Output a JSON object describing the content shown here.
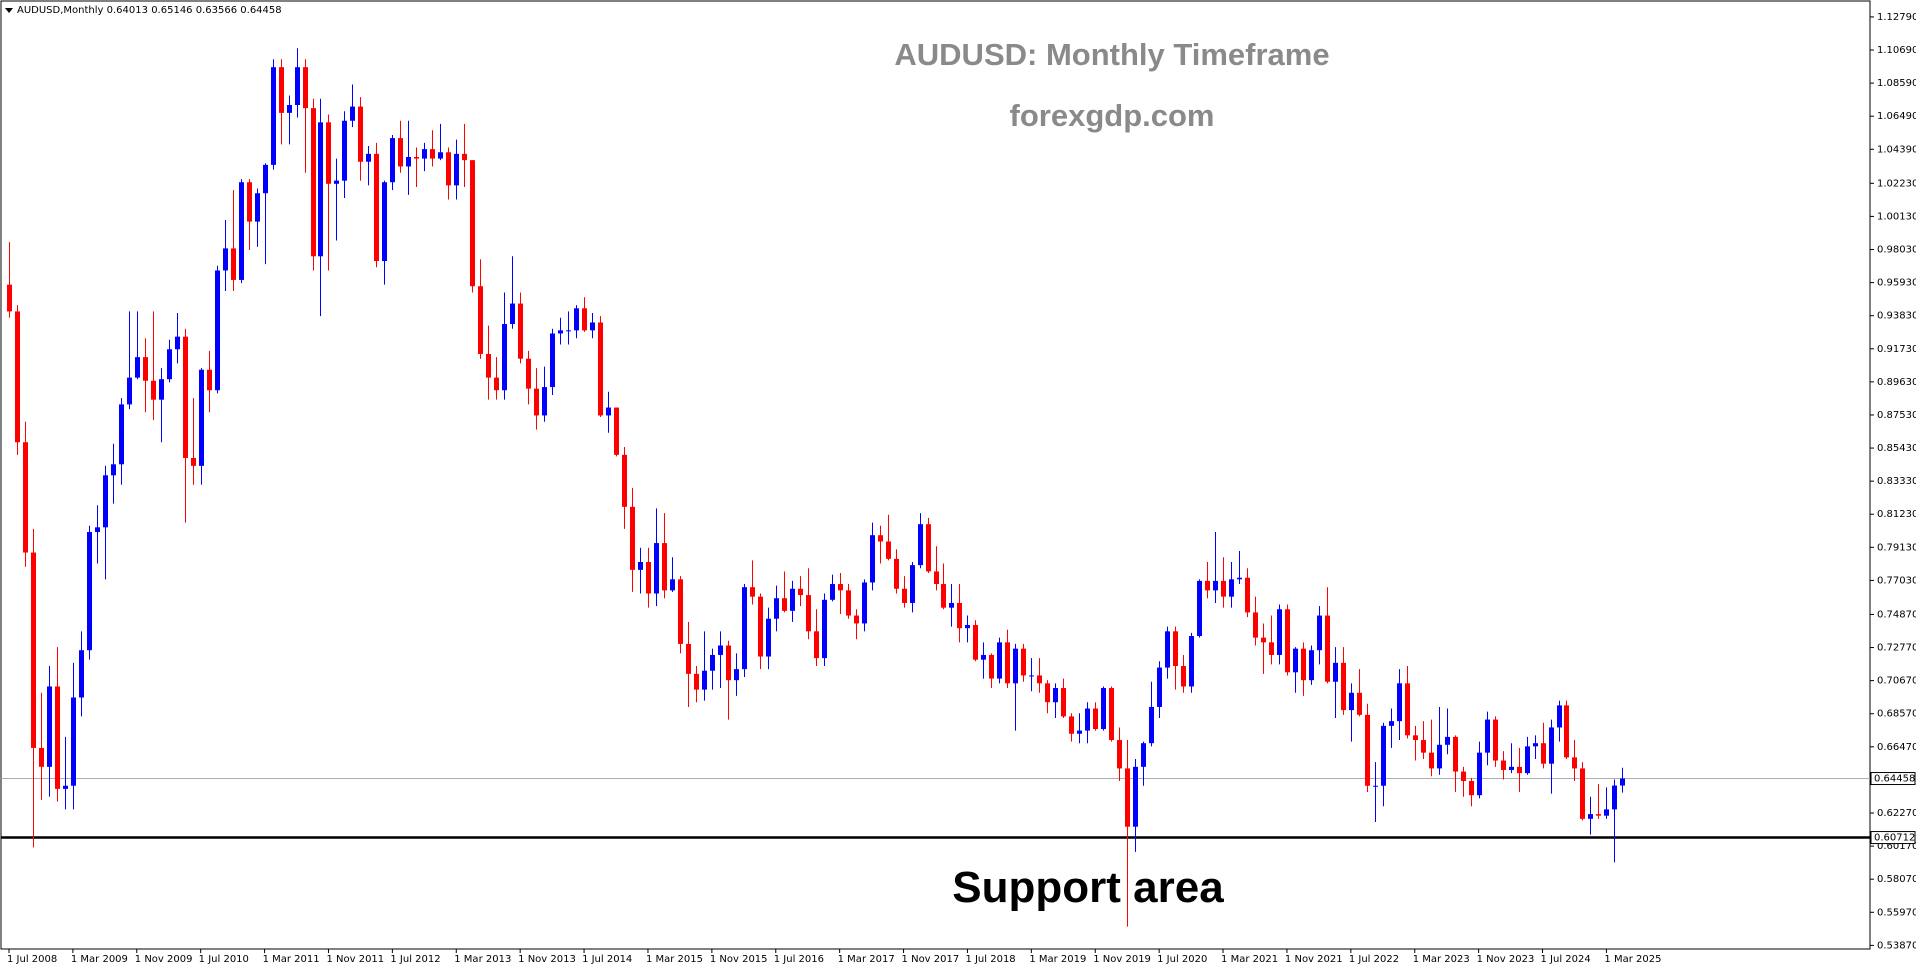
{
  "chart_data": {
    "type": "candlestick",
    "title": "AUDUSD: Monthly Timeframe",
    "subtitle": "forexgdp.com",
    "symbol": "AUDUSD,Monthly",
    "annotation": "Support area",
    "up_color": "#0000ff",
    "down_color": "#ff0000",
    "price_line_color": "#a9adb5",
    "support": {
      "value": 0.60712,
      "color": "#000000"
    },
    "x": [
      "2008-07-01",
      "2008-08-01",
      "2008-09-01",
      "2008-10-01",
      "2008-11-01",
      "2008-12-01",
      "2009-01-01",
      "2009-02-01",
      "2009-03-01",
      "2009-04-01",
      "2009-05-01",
      "2009-06-01",
      "2009-07-01",
      "2009-08-01",
      "2009-09-01",
      "2009-10-01",
      "2009-11-01",
      "2009-12-01",
      "2010-01-01",
      "2010-02-01",
      "2010-03-01",
      "2010-04-01",
      "2010-05-01",
      "2010-06-01",
      "2010-07-01",
      "2010-08-01",
      "2010-09-01",
      "2010-10-01",
      "2010-11-01",
      "2010-12-01",
      "2011-01-01",
      "2011-02-01",
      "2011-03-01",
      "2011-04-01",
      "2011-05-01",
      "2011-06-01",
      "2011-07-01",
      "2011-08-01",
      "2011-09-01",
      "2011-10-01",
      "2011-11-01",
      "2011-12-01",
      "2012-01-01",
      "2012-02-01",
      "2012-03-01",
      "2012-04-01",
      "2012-05-01",
      "2012-06-01",
      "2012-07-01",
      "2012-08-01",
      "2012-09-01",
      "2012-10-01",
      "2012-11-01",
      "2012-12-01",
      "2013-01-01",
      "2013-02-01",
      "2013-03-01",
      "2013-04-01",
      "2013-05-01",
      "2013-06-01",
      "2013-07-01",
      "2013-08-01",
      "2013-09-01",
      "2013-10-01",
      "2013-11-01",
      "2013-12-01",
      "2014-01-01",
      "2014-02-01",
      "2014-03-01",
      "2014-04-01",
      "2014-05-01",
      "2014-06-01",
      "2014-07-01",
      "2014-08-01",
      "2014-09-01",
      "2014-10-01",
      "2014-11-01",
      "2014-12-01",
      "2015-01-01",
      "2015-02-01",
      "2015-03-01",
      "2015-04-01",
      "2015-05-01",
      "2015-06-01",
      "2015-07-01",
      "2015-08-01",
      "2015-09-01",
      "2015-10-01",
      "2015-11-01",
      "2015-12-01",
      "2016-01-01",
      "2016-02-01",
      "2016-03-01",
      "2016-04-01",
      "2016-05-01",
      "2016-06-01",
      "2016-07-01",
      "2016-08-01",
      "2016-09-01",
      "2016-10-01",
      "2016-11-01",
      "2016-12-01",
      "2017-01-01",
      "2017-02-01",
      "2017-03-01",
      "2017-04-01",
      "2017-05-01",
      "2017-06-01",
      "2017-07-01",
      "2017-08-01",
      "2017-09-01",
      "2017-10-01",
      "2017-11-01",
      "2017-12-01",
      "2018-01-01",
      "2018-02-01",
      "2018-03-01",
      "2018-04-01",
      "2018-05-01",
      "2018-06-01",
      "2018-07-01",
      "2018-08-01",
      "2018-09-01",
      "2018-10-01",
      "2018-11-01",
      "2018-12-01",
      "2019-01-01",
      "2019-02-01",
      "2019-03-01",
      "2019-04-01",
      "2019-05-01",
      "2019-06-01",
      "2019-07-01",
      "2019-08-01",
      "2019-09-01",
      "2019-10-01",
      "2019-11-01",
      "2019-12-01",
      "2020-01-01",
      "2020-02-01",
      "2020-03-01",
      "2020-04-01",
      "2020-05-01",
      "2020-06-01",
      "2020-07-01",
      "2020-08-01",
      "2020-09-01",
      "2020-10-01",
      "2020-11-01",
      "2020-12-01",
      "2021-01-01",
      "2021-02-01",
      "2021-03-01",
      "2021-04-01",
      "2021-05-01",
      "2021-06-01",
      "2021-07-01",
      "2021-08-01",
      "2021-09-01",
      "2021-10-01",
      "2021-11-01",
      "2021-12-01",
      "2022-01-01",
      "2022-02-01",
      "2022-03-01",
      "2022-04-01",
      "2022-05-01",
      "2022-06-01",
      "2022-07-01",
      "2022-08-01",
      "2022-09-01",
      "2022-10-01",
      "2022-11-01",
      "2022-12-01",
      "2023-01-01",
      "2023-02-01",
      "2023-03-01",
      "2023-04-01",
      "2023-05-01",
      "2023-06-01",
      "2023-07-01",
      "2023-08-01",
      "2023-09-01",
      "2023-10-01",
      "2023-11-01",
      "2023-12-01",
      "2024-01-01",
      "2024-02-01",
      "2024-03-01",
      "2024-04-01",
      "2024-05-01",
      "2024-06-01",
      "2024-07-01",
      "2024-08-01",
      "2024-09-01",
      "2024-10-01",
      "2024-11-01",
      "2024-12-01",
      "2025-01-01",
      "2025-02-01",
      "2025-03-01",
      "2025-04-01",
      "2025-05-01"
    ],
    "open": [
      0.958,
      0.941,
      0.858,
      0.788,
      0.664,
      0.652,
      0.703,
      0.638,
      0.64,
      0.696,
      0.726,
      0.801,
      0.804,
      0.837,
      0.844,
      0.882,
      0.899,
      0.912,
      0.897,
      0.885,
      0.898,
      0.917,
      0.925,
      0.848,
      0.843,
      0.904,
      0.891,
      0.967,
      0.981,
      0.961,
      1.023,
      0.998,
      1.016,
      1.034,
      1.096,
      1.067,
      1.072,
      1.096,
      1.07,
      0.976,
      1.061,
      1.022,
      1.024,
      1.062,
      1.071,
      1.036,
      1.041,
      0.973,
      1.023,
      1.051,
      1.033,
      1.039,
      1.038,
      1.044,
      1.038,
      1.042,
      1.021,
      1.041,
      1.037,
      0.957,
      0.914,
      0.899,
      0.891,
      0.933,
      0.946,
      0.911,
      0.892,
      0.875,
      0.893,
      0.927,
      0.929,
      0.929,
      0.943,
      0.929,
      0.934,
      0.875,
      0.88,
      0.85,
      0.817,
      0.777,
      0.782,
      0.762,
      0.794,
      0.764,
      0.771,
      0.73,
      0.711,
      0.701,
      0.713,
      0.723,
      0.729,
      0.707,
      0.714,
      0.766,
      0.76,
      0.722,
      0.746,
      0.759,
      0.751,
      0.765,
      0.761,
      0.738,
      0.721,
      0.758,
      0.768,
      0.764,
      0.748,
      0.743,
      0.769,
      0.799,
      0.795,
      0.784,
      0.765,
      0.756,
      0.78,
      0.806,
      0.776,
      0.768,
      0.753,
      0.756,
      0.74,
      0.742,
      0.72,
      0.723,
      0.708,
      0.731,
      0.705,
      0.727,
      0.71,
      0.71,
      0.705,
      0.693,
      0.702,
      0.684,
      0.673,
      0.675,
      0.689,
      0.676,
      0.702,
      0.669,
      0.651,
      0.614,
      0.652,
      0.667,
      0.69,
      0.715,
      0.738,
      0.716,
      0.703,
      0.735,
      0.77,
      0.764,
      0.77,
      0.76,
      0.771,
      0.772,
      0.75,
      0.734,
      0.731,
      0.723,
      0.752,
      0.712,
      0.727,
      0.707,
      0.726,
      0.748,
      0.706,
      0.718,
      0.688,
      0.699,
      0.685,
      0.64,
      0.64,
      0.678,
      0.681,
      0.705,
      0.672,
      0.669,
      0.661,
      0.651,
      0.666,
      0.671,
      0.649,
      0.643,
      0.634,
      0.661,
      0.682,
      0.656,
      0.65,
      0.652,
      0.648,
      0.665,
      0.667,
      0.654,
      0.677,
      0.691,
      0.658,
      0.651,
      0.619,
      0.622,
      0.621,
      0.625,
      0.64013
    ],
    "high": [
      0.985,
      0.945,
      0.871,
      0.803,
      0.699,
      0.716,
      0.728,
      0.671,
      0.718,
      0.738,
      0.805,
      0.818,
      0.843,
      0.857,
      0.886,
      0.941,
      0.941,
      0.924,
      0.941,
      0.905,
      0.923,
      0.94,
      0.93,
      0.886,
      0.905,
      0.916,
      0.97,
      0.999,
      1.018,
      1.025,
      1.025,
      1.019,
      1.035,
      1.101,
      1.101,
      1.078,
      1.108,
      1.101,
      1.076,
      1.076,
      1.066,
      1.038,
      1.068,
      1.085,
      1.077,
      1.046,
      1.048,
      1.024,
      1.053,
      1.062,
      1.062,
      1.045,
      1.048,
      1.056,
      1.06,
      1.045,
      1.05,
      1.06,
      1.037,
      0.974,
      0.932,
      0.912,
      0.953,
      0.976,
      0.953,
      0.916,
      0.905,
      0.906,
      0.93,
      0.937,
      0.941,
      0.945,
      0.95,
      0.94,
      0.938,
      0.89,
      0.88,
      0.855,
      0.829,
      0.791,
      0.791,
      0.816,
      0.813,
      0.785,
      0.773,
      0.744,
      0.716,
      0.738,
      0.727,
      0.738,
      0.732,
      0.724,
      0.768,
      0.783,
      0.762,
      0.753,
      0.767,
      0.776,
      0.77,
      0.773,
      0.778,
      0.752,
      0.762,
      0.774,
      0.775,
      0.768,
      0.752,
      0.771,
      0.807,
      0.805,
      0.812,
      0.79,
      0.773,
      0.782,
      0.813,
      0.81,
      0.792,
      0.781,
      0.768,
      0.768,
      0.748,
      0.745,
      0.731,
      0.724,
      0.734,
      0.739,
      0.73,
      0.73,
      0.721,
      0.721,
      0.707,
      0.705,
      0.708,
      0.686,
      0.686,
      0.693,
      0.693,
      0.703,
      0.703,
      0.677,
      0.669,
      0.657,
      0.668,
      0.706,
      0.719,
      0.741,
      0.741,
      0.723,
      0.737,
      0.771,
      0.782,
      0.801,
      0.785,
      0.782,
      0.789,
      0.778,
      0.76,
      0.743,
      0.748,
      0.755,
      0.755,
      0.728,
      0.731,
      0.729,
      0.754,
      0.766,
      0.728,
      0.728,
      0.705,
      0.714,
      0.692,
      0.655,
      0.68,
      0.689,
      0.714,
      0.716,
      0.678,
      0.681,
      0.682,
      0.69,
      0.689,
      0.672,
      0.652,
      0.645,
      0.668,
      0.687,
      0.684,
      0.662,
      0.667,
      0.664,
      0.671,
      0.672,
      0.68,
      0.682,
      0.694,
      0.694,
      0.669,
      0.655,
      0.633,
      0.641,
      0.639,
      0.644,
      0.65146
    ],
    "low": [
      0.937,
      0.85,
      0.779,
      0.6009,
      0.631,
      0.633,
      0.63,
      0.625,
      0.625,
      0.684,
      0.72,
      0.781,
      0.771,
      0.819,
      0.831,
      0.879,
      0.898,
      0.877,
      0.872,
      0.858,
      0.896,
      0.908,
      0.807,
      0.831,
      0.831,
      0.877,
      0.889,
      0.954,
      0.954,
      0.959,
      0.98,
      0.982,
      0.971,
      1.031,
      1.047,
      1.047,
      1.064,
      1.029,
      0.967,
      0.938,
      0.967,
      0.986,
      1.013,
      1.058,
      1.024,
      1.021,
      0.969,
      0.958,
      1.018,
      1.029,
      1.015,
      1.02,
      1.03,
      1.033,
      1.037,
      1.012,
      1.012,
      1.02,
      0.953,
      0.911,
      0.885,
      0.885,
      0.885,
      0.93,
      0.908,
      0.882,
      0.866,
      0.871,
      0.888,
      0.92,
      0.92,
      0.924,
      0.928,
      0.924,
      0.874,
      0.864,
      0.849,
      0.803,
      0.763,
      0.762,
      0.753,
      0.754,
      0.759,
      0.763,
      0.724,
      0.69,
      0.693,
      0.694,
      0.701,
      0.702,
      0.682,
      0.697,
      0.709,
      0.755,
      0.714,
      0.714,
      0.738,
      0.75,
      0.744,
      0.754,
      0.733,
      0.716,
      0.716,
      0.757,
      0.749,
      0.746,
      0.733,
      0.738,
      0.764,
      0.781,
      0.783,
      0.762,
      0.753,
      0.75,
      0.778,
      0.775,
      0.764,
      0.752,
      0.741,
      0.731,
      0.731,
      0.719,
      0.708,
      0.702,
      0.705,
      0.702,
      0.675,
      0.706,
      0.7,
      0.699,
      0.686,
      0.683,
      0.683,
      0.668,
      0.667,
      0.667,
      0.675,
      0.675,
      0.668,
      0.643,
      0.5506,
      0.598,
      0.64,
      0.665,
      0.683,
      0.708,
      0.701,
      0.699,
      0.699,
      0.734,
      0.759,
      0.756,
      0.753,
      0.753,
      0.768,
      0.747,
      0.729,
      0.711,
      0.717,
      0.717,
      0.71,
      0.699,
      0.697,
      0.704,
      0.717,
      0.705,
      0.683,
      0.685,
      0.668,
      0.684,
      0.636,
      0.617,
      0.627,
      0.664,
      0.669,
      0.67,
      0.656,
      0.657,
      0.646,
      0.647,
      0.66,
      0.636,
      0.633,
      0.627,
      0.632,
      0.653,
      0.652,
      0.644,
      0.648,
      0.636,
      0.647,
      0.657,
      0.651,
      0.635,
      0.668,
      0.657,
      0.643,
      0.618,
      0.609,
      0.619,
      0.619,
      0.5914,
      0.63566
    ],
    "close": [
      0.941,
      0.858,
      0.788,
      0.664,
      0.652,
      0.703,
      0.638,
      0.64,
      0.696,
      0.726,
      0.801,
      0.804,
      0.837,
      0.844,
      0.882,
      0.899,
      0.912,
      0.897,
      0.885,
      0.898,
      0.917,
      0.925,
      0.848,
      0.843,
      0.904,
      0.891,
      0.967,
      0.981,
      0.961,
      1.023,
      0.998,
      1.016,
      1.034,
      1.096,
      1.067,
      1.072,
      1.096,
      1.07,
      0.976,
      1.061,
      1.022,
      1.024,
      1.062,
      1.071,
      1.036,
      1.041,
      0.973,
      1.023,
      1.051,
      1.033,
      1.039,
      1.038,
      1.044,
      1.038,
      1.042,
      1.021,
      1.041,
      1.037,
      0.957,
      0.914,
      0.899,
      0.891,
      0.933,
      0.946,
      0.911,
      0.892,
      0.875,
      0.893,
      0.927,
      0.929,
      0.929,
      0.943,
      0.929,
      0.934,
      0.875,
      0.88,
      0.85,
      0.817,
      0.777,
      0.782,
      0.762,
      0.794,
      0.764,
      0.771,
      0.73,
      0.711,
      0.701,
      0.713,
      0.723,
      0.729,
      0.707,
      0.714,
      0.766,
      0.76,
      0.722,
      0.746,
      0.759,
      0.751,
      0.765,
      0.761,
      0.738,
      0.721,
      0.758,
      0.768,
      0.764,
      0.748,
      0.743,
      0.769,
      0.799,
      0.795,
      0.784,
      0.765,
      0.756,
      0.78,
      0.806,
      0.776,
      0.768,
      0.753,
      0.756,
      0.74,
      0.742,
      0.72,
      0.723,
      0.708,
      0.731,
      0.705,
      0.727,
      0.71,
      0.71,
      0.705,
      0.693,
      0.702,
      0.684,
      0.673,
      0.675,
      0.689,
      0.676,
      0.702,
      0.669,
      0.651,
      0.614,
      0.652,
      0.667,
      0.69,
      0.715,
      0.738,
      0.716,
      0.703,
      0.735,
      0.77,
      0.764,
      0.77,
      0.76,
      0.771,
      0.772,
      0.75,
      0.734,
      0.731,
      0.723,
      0.752,
      0.712,
      0.727,
      0.707,
      0.726,
      0.748,
      0.706,
      0.718,
      0.688,
      0.699,
      0.685,
      0.64,
      0.64,
      0.678,
      0.681,
      0.705,
      0.672,
      0.669,
      0.661,
      0.651,
      0.666,
      0.671,
      0.649,
      0.643,
      0.634,
      0.661,
      0.682,
      0.656,
      0.65,
      0.652,
      0.648,
      0.665,
      0.667,
      0.654,
      0.677,
      0.691,
      0.658,
      0.651,
      0.619,
      0.622,
      0.621,
      0.625,
      0.64013,
      0.64458
    ],
    "xlim": [
      "2008-06-01",
      "2027-12-01"
    ],
    "xticks": [
      {
        "value": "2008-07-01",
        "label": "1 Jul 2008"
      },
      {
        "value": "2009-03-01",
        "label": "1 Mar 2009"
      },
      {
        "value": "2009-11-01",
        "label": "1 Nov 2009"
      },
      {
        "value": "2010-07-01",
        "label": "1 Jul 2010"
      },
      {
        "value": "2011-03-01",
        "label": "1 Mar 2011"
      },
      {
        "value": "2011-11-01",
        "label": "1 Nov 2011"
      },
      {
        "value": "2012-07-01",
        "label": "1 Jul 2012"
      },
      {
        "value": "2013-03-01",
        "label": "1 Mar 2013"
      },
      {
        "value": "2013-11-01",
        "label": "1 Nov 2013"
      },
      {
        "value": "2014-07-01",
        "label": "1 Jul 2014"
      },
      {
        "value": "2015-03-01",
        "label": "1 Mar 2015"
      },
      {
        "value": "2015-11-01",
        "label": "1 Nov 2015"
      },
      {
        "value": "2016-07-01",
        "label": "1 Jul 2016"
      },
      {
        "value": "2017-03-01",
        "label": "1 Mar 2017"
      },
      {
        "value": "2017-11-01",
        "label": "1 Nov 2017"
      },
      {
        "value": "2018-07-01",
        "label": "1 Jul 2018"
      },
      {
        "value": "2019-03-01",
        "label": "1 Mar 2019"
      },
      {
        "value": "2019-11-01",
        "label": "1 Nov 2019"
      },
      {
        "value": "2020-07-01",
        "label": "1 Jul 2020"
      },
      {
        "value": "2021-03-01",
        "label": "1 Mar 2021"
      },
      {
        "value": "2021-11-01",
        "label": "1 Nov 2021"
      },
      {
        "value": "2022-07-01",
        "label": "1 Jul 2022"
      },
      {
        "value": "2023-03-01",
        "label": "1 Mar 2023"
      },
      {
        "value": "2023-11-01",
        "label": "1 Nov 2023"
      },
      {
        "value": "2024-07-01",
        "label": "1 Jul 2024"
      },
      {
        "value": "2025-03-01",
        "label": "1 Mar 2025"
      }
    ],
    "ylim": [
      0.5364,
      1.138
    ],
    "yticks": [
      {
        "value": 1.1279,
        "label": "1.12790"
      },
      {
        "value": 1.1069,
        "label": "1.10690"
      },
      {
        "value": 1.0859,
        "label": "1.08590"
      },
      {
        "value": 1.0649,
        "label": "1.06490"
      },
      {
        "value": 1.0439,
        "label": "1.04390"
      },
      {
        "value": 1.0223,
        "label": "1.02230"
      },
      {
        "value": 1.0013,
        "label": "1.00130"
      },
      {
        "value": 0.9803,
        "label": "0.98030"
      },
      {
        "value": 0.9593,
        "label": "0.95930"
      },
      {
        "value": 0.9383,
        "label": "0.93830"
      },
      {
        "value": 0.9173,
        "label": "0.91730"
      },
      {
        "value": 0.8963,
        "label": "0.89630"
      },
      {
        "value": 0.8753,
        "label": "0.87530"
      },
      {
        "value": 0.8543,
        "label": "0.85430"
      },
      {
        "value": 0.8333,
        "label": "0.83330"
      },
      {
        "value": 0.8123,
        "label": "0.81230"
      },
      {
        "value": 0.7913,
        "label": "0.79130"
      },
      {
        "value": 0.7703,
        "label": "0.77030"
      },
      {
        "value": 0.7487,
        "label": "0.74870"
      },
      {
        "value": 0.7277,
        "label": "0.72770"
      },
      {
        "value": 0.7067,
        "label": "0.70670"
      },
      {
        "value": 0.6857,
        "label": "0.68570"
      },
      {
        "value": 0.6647,
        "label": "0.66470"
      },
      {
        "value": 0.6227,
        "label": "0.62270"
      },
      {
        "value": 0.6017,
        "label": "0.60170"
      },
      {
        "value": 0.5807,
        "label": "0.58070"
      },
      {
        "value": 0.5597,
        "label": "0.55970"
      },
      {
        "value": 0.5387,
        "label": "0.53870"
      }
    ]
  }
}
